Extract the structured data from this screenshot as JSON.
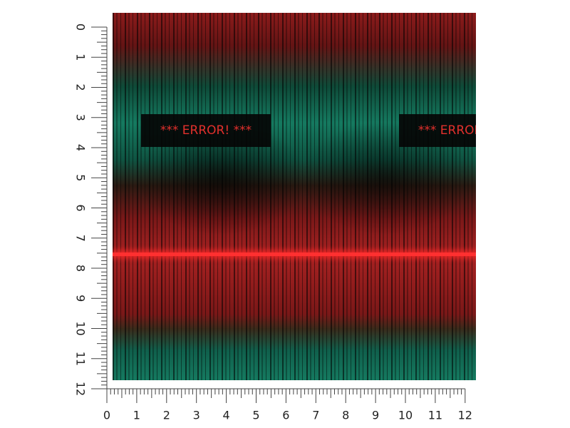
{
  "ruler": {
    "vertical_labels": [
      0,
      1,
      2,
      3,
      4,
      5,
      6,
      7,
      8,
      9,
      10,
      11,
      12
    ],
    "horizontal_labels": [
      0,
      1,
      2,
      3,
      4,
      5,
      6,
      7,
      8,
      9,
      10,
      11,
      12
    ]
  },
  "pattern": {
    "banner_text": "*** ERROR! ***"
  }
}
